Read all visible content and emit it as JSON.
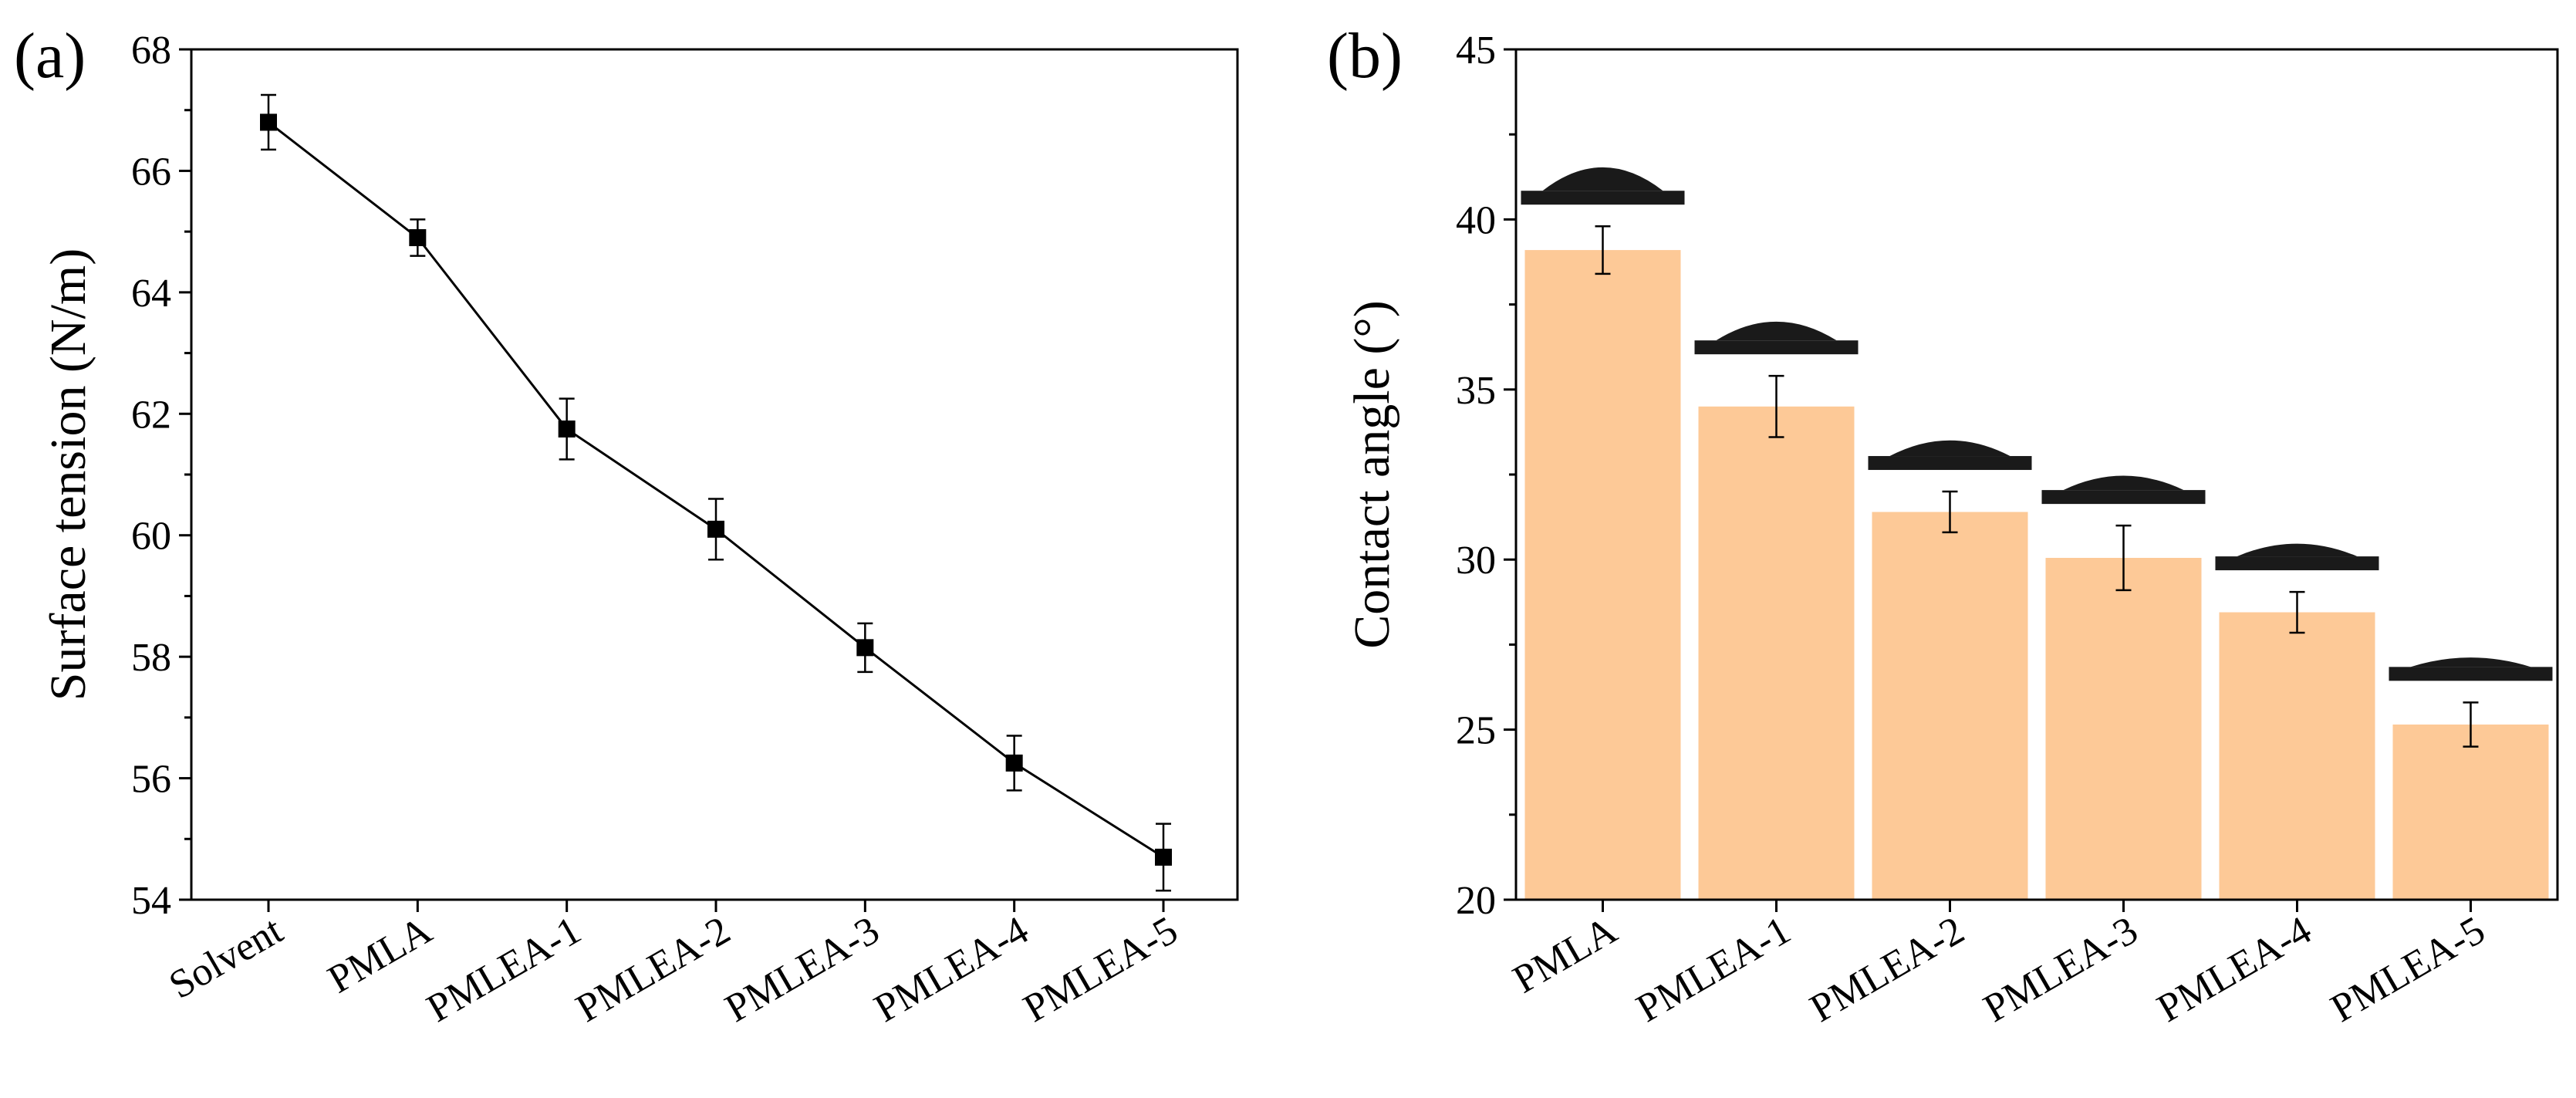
{
  "chart_data": [
    {
      "panel_label": "(a)",
      "type": "line",
      "categories": [
        "Solvent",
        "PMLA",
        "PMLEA-1",
        "PMLEA-2",
        "PMLEA-3",
        "PMLEA-4",
        "PMLEA-5"
      ],
      "series": [
        {
          "name": "Surface tension",
          "values": [
            66.8,
            64.9,
            61.75,
            60.1,
            58.15,
            56.25,
            54.7
          ],
          "errors": [
            0.45,
            0.3,
            0.5,
            0.5,
            0.4,
            0.45,
            0.55
          ]
        }
      ],
      "xlabel": "",
      "ylabel": "Surface tension (N/m)",
      "ylim": [
        54,
        68
      ],
      "yticks": [
        "54",
        "56",
        "58",
        "60",
        "62",
        "64",
        "66",
        "68"
      ],
      "marker": "square",
      "color": "#000000"
    },
    {
      "panel_label": "(b)",
      "type": "bar",
      "categories": [
        "PMLA",
        "PMLEA-1",
        "PMLEA-2",
        "PMLEA-3",
        "PMLEA-4",
        "PMLEA-5"
      ],
      "series": [
        {
          "name": "Contact angle",
          "values": [
            39.1,
            34.5,
            31.4,
            30.05,
            28.45,
            25.15
          ],
          "errors": [
            0.7,
            0.9,
            0.6,
            0.95,
            0.6,
            0.65
          ]
        }
      ],
      "xlabel": "",
      "ylabel": "Contact angle (°)",
      "ylim": [
        20,
        45
      ],
      "yticks": [
        "20",
        "25",
        "30",
        "35",
        "40",
        "45"
      ],
      "bar_color": "#fdc997",
      "droplet_color": "#1a1a1a"
    }
  ]
}
